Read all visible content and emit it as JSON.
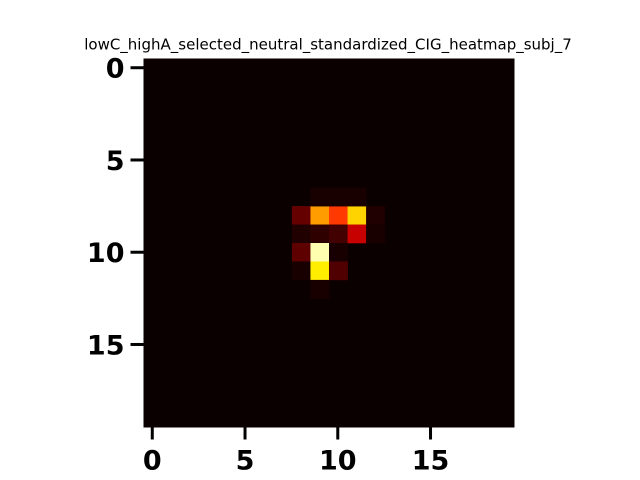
{
  "chart_data": {
    "type": "heatmap",
    "title": "lowC_highA_selected_neutral_standardized_CIG_heatmap_subj_7",
    "xlabel": "",
    "ylabel": "",
    "rows": 20,
    "cols": 20,
    "x_ticks": [
      0,
      5,
      10,
      15
    ],
    "y_ticks": [
      0,
      5,
      10,
      15
    ],
    "x_tick_labels": [
      "0",
      "5",
      "10",
      "15"
    ],
    "y_tick_labels": [
      "0",
      "5",
      "10",
      "15"
    ],
    "colormap": "hot",
    "background_color": "#0b0000",
    "value_range": [
      0,
      1
    ],
    "cells": [
      {
        "row": 8,
        "col": 8,
        "value": 0.13
      },
      {
        "row": 8,
        "col": 9,
        "value": 0.6
      },
      {
        "row": 8,
        "col": 10,
        "value": 0.45
      },
      {
        "row": 8,
        "col": 11,
        "value": 0.68
      },
      {
        "row": 8,
        "col": 12,
        "value": 0.03
      },
      {
        "row": 9,
        "col": 8,
        "value": 0.03
      },
      {
        "row": 9,
        "col": 9,
        "value": 0.05
      },
      {
        "row": 9,
        "col": 10,
        "value": 0.08
      },
      {
        "row": 9,
        "col": 11,
        "value": 0.27
      },
      {
        "row": 9,
        "col": 12,
        "value": 0.02
      },
      {
        "row": 10,
        "col": 8,
        "value": 0.12
      },
      {
        "row": 10,
        "col": 9,
        "value": 0.92
      },
      {
        "row": 10,
        "col": 10,
        "value": 0.02
      },
      {
        "row": 11,
        "col": 8,
        "value": 0.02
      },
      {
        "row": 11,
        "col": 9,
        "value": 0.72
      },
      {
        "row": 11,
        "col": 10,
        "value": 0.1
      },
      {
        "row": 7,
        "col": 9,
        "value": 0.02
      },
      {
        "row": 7,
        "col": 10,
        "value": 0.02
      },
      {
        "row": 7,
        "col": 11,
        "value": 0.02
      },
      {
        "row": 12,
        "col": 9,
        "value": 0.02
      }
    ]
  }
}
